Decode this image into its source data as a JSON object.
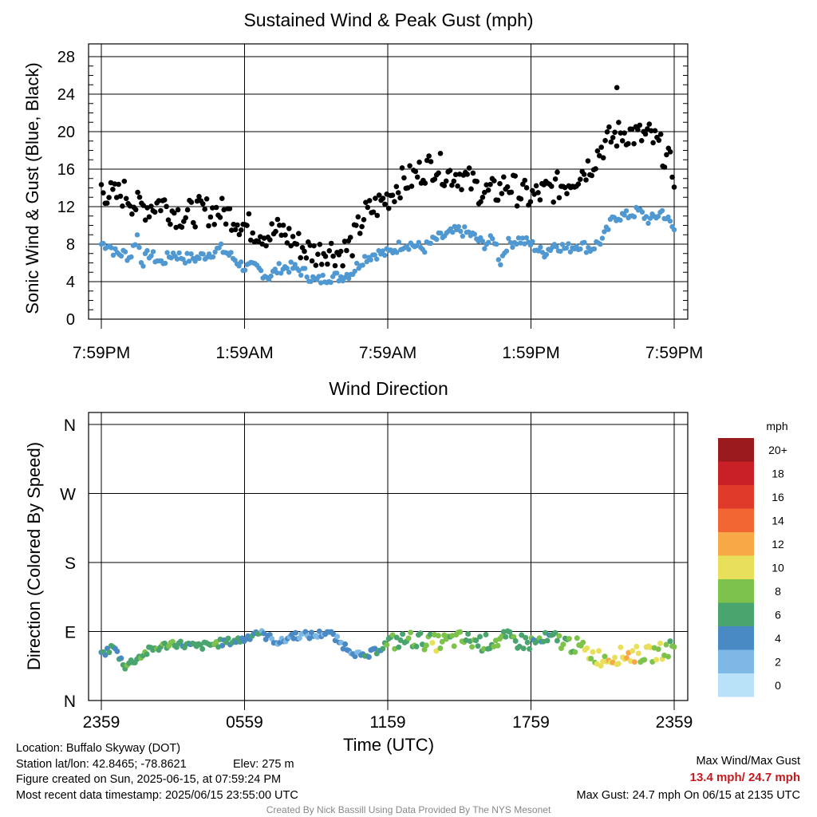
{
  "chart_data": [
    {
      "type": "scatter",
      "title": "Sustained Wind & Peak Gust (mph)",
      "ylabel": "Sonic Wind & Gust (Blue, Black)",
      "xlabel": "",
      "ylim": [
        0,
        28
      ],
      "yticks": [
        "0",
        "4",
        "8",
        "12",
        "16",
        "20",
        "24",
        "28"
      ],
      "xticks": [
        "7:59PM",
        "1:59AM",
        "7:59AM",
        "1:59PM",
        "7:59PM"
      ],
      "x_range_hours": [
        0,
        24
      ],
      "grid": true,
      "series": [],
      "colors": {
        "sustained": "#4f98d2",
        "gust": "#000000"
      },
      "sustained_profile": [
        [
          0,
          8.0
        ],
        [
          0.3,
          8.0
        ],
        [
          0.6,
          7.0
        ],
        [
          1.0,
          7.0
        ],
        [
          1.2,
          6.5
        ],
        [
          1.5,
          9.0
        ],
        [
          1.7,
          6.0
        ],
        [
          2.0,
          7.0
        ],
        [
          2.5,
          6.0
        ],
        [
          3.0,
          7.0
        ],
        [
          3.5,
          6.5
        ],
        [
          4.0,
          6.5
        ],
        [
          4.5,
          7.0
        ],
        [
          5.0,
          7.5
        ],
        [
          5.3,
          7.0
        ],
        [
          6.0,
          5.5
        ],
        [
          6.5,
          5.5
        ],
        [
          7.0,
          4.5
        ],
        [
          7.5,
          5.5
        ],
        [
          8.0,
          5.5
        ],
        [
          8.5,
          5.0
        ],
        [
          9.0,
          4.0
        ],
        [
          9.5,
          4.5
        ],
        [
          10.0,
          4.5
        ],
        [
          10.5,
          5.0
        ],
        [
          11.0,
          6.5
        ],
        [
          11.5,
          7.0
        ],
        [
          12.0,
          7.0
        ],
        [
          12.3,
          7.5
        ],
        [
          12.6,
          8.0
        ],
        [
          13.0,
          8.0
        ],
        [
          13.5,
          7.5
        ],
        [
          14.0,
          8.5
        ],
        [
          14.5,
          9.0
        ],
        [
          15.0,
          9.5
        ],
        [
          15.5,
          9.0
        ],
        [
          16.0,
          8.0
        ],
        [
          16.5,
          8.5
        ],
        [
          16.7,
          6.0
        ],
        [
          17.0,
          8.0
        ],
        [
          17.5,
          8.5
        ],
        [
          18.0,
          8.0
        ],
        [
          18.5,
          7.0
        ],
        [
          19.0,
          8.0
        ],
        [
          19.5,
          7.5
        ],
        [
          20.0,
          8.0
        ],
        [
          20.5,
          7.5
        ],
        [
          21.0,
          8.5
        ],
        [
          21.5,
          11.0
        ],
        [
          22.0,
          11.0
        ],
        [
          22.5,
          11.5
        ],
        [
          23.0,
          10.5
        ],
        [
          23.5,
          11.5
        ],
        [
          24.0,
          9.5
        ]
      ],
      "gust_profile": [
        [
          0,
          14.0
        ],
        [
          0.5,
          13.0
        ],
        [
          1.0,
          13.5
        ],
        [
          1.5,
          12.0
        ],
        [
          2.0,
          12.0
        ],
        [
          2.5,
          12.5
        ],
        [
          3.0,
          11.5
        ],
        [
          3.5,
          11.0
        ],
        [
          4.0,
          11.5
        ],
        [
          4.5,
          11.5
        ],
        [
          5.0,
          11.5
        ],
        [
          5.5,
          11.0
        ],
        [
          6.0,
          10.0
        ],
        [
          6.5,
          9.5
        ],
        [
          7.0,
          9.0
        ],
        [
          7.5,
          9.5
        ],
        [
          8.0,
          8.5
        ],
        [
          8.5,
          7.5
        ],
        [
          9.0,
          7.0
        ],
        [
          9.5,
          7.5
        ],
        [
          10.0,
          7.0
        ],
        [
          10.5,
          8.0
        ],
        [
          11.0,
          11.0
        ],
        [
          11.5,
          12.0
        ],
        [
          12.0,
          13.0
        ],
        [
          12.5,
          14.5
        ],
        [
          13.0,
          15.0
        ],
        [
          13.5,
          16.0
        ],
        [
          14.0,
          16.5
        ],
        [
          14.5,
          15.5
        ],
        [
          15.0,
          15.5
        ],
        [
          15.5,
          14.5
        ],
        [
          16.0,
          13.5
        ],
        [
          16.5,
          13.5
        ],
        [
          17.0,
          14.5
        ],
        [
          17.5,
          13.5
        ],
        [
          18.0,
          13.0
        ],
        [
          18.5,
          13.5
        ],
        [
          19.0,
          14.0
        ],
        [
          19.5,
          14.5
        ],
        [
          20.0,
          15.5
        ],
        [
          20.5,
          16.5
        ],
        [
          21.0,
          18.5
        ],
        [
          21.5,
          19.5
        ],
        [
          22.0,
          20.0
        ],
        [
          22.5,
          19.5
        ],
        [
          23.0,
          19.5
        ],
        [
          23.5,
          18.0
        ],
        [
          24.0,
          15.5
        ]
      ],
      "peak_gust": {
        "value": 24.7,
        "x_hours": 21.6
      }
    },
    {
      "type": "scatter",
      "title": "Wind Direction",
      "ylabel": "Direction (Colored By Speed)",
      "xlabel": "Time (UTC)",
      "yticks": [
        "N",
        "E",
        "S",
        "W",
        "N"
      ],
      "ylim": [
        0,
        360
      ],
      "xticks": [
        "2359",
        "0559",
        "1159",
        "1759",
        "2359"
      ],
      "x_range_hours": [
        0,
        24
      ],
      "grid": true,
      "direction_profile": [
        [
          0,
          60
        ],
        [
          0.5,
          70
        ],
        [
          1.0,
          45
        ],
        [
          1.5,
          55
        ],
        [
          2.0,
          65
        ],
        [
          3.0,
          75
        ],
        [
          4.0,
          70
        ],
        [
          5.0,
          75
        ],
        [
          6.0,
          80
        ],
        [
          6.5,
          90
        ],
        [
          7.5,
          75
        ],
        [
          8.0,
          85
        ],
        [
          9.0,
          85
        ],
        [
          9.5,
          90
        ],
        [
          10.0,
          75
        ],
        [
          11.0,
          55
        ],
        [
          11.5,
          65
        ],
        [
          12.0,
          75
        ],
        [
          13.0,
          80
        ],
        [
          14.0,
          75
        ],
        [
          15.0,
          80
        ],
        [
          16.0,
          75
        ],
        [
          17.0,
          80
        ],
        [
          18.0,
          75
        ],
        [
          19.0,
          80
        ],
        [
          20.0,
          70
        ],
        [
          20.5,
          60
        ],
        [
          21.0,
          55
        ],
        [
          22.0,
          60
        ],
        [
          23.0,
          60
        ],
        [
          24.0,
          70
        ]
      ],
      "speed_profile": [
        [
          0,
          6
        ],
        [
          1.5,
          8
        ],
        [
          3.0,
          7
        ],
        [
          5.0,
          7
        ],
        [
          6.5,
          5
        ],
        [
          8.0,
          4
        ],
        [
          9.5,
          4
        ],
        [
          11.0,
          5
        ],
        [
          12.0,
          7
        ],
        [
          13.0,
          8
        ],
        [
          14.0,
          9
        ],
        [
          15.0,
          9
        ],
        [
          16.0,
          8
        ],
        [
          17.0,
          8
        ],
        [
          18.0,
          7
        ],
        [
          19.0,
          7
        ],
        [
          20.0,
          9
        ],
        [
          21.0,
          11
        ],
        [
          22.0,
          12
        ],
        [
          23.0,
          10
        ],
        [
          24.0,
          9
        ]
      ],
      "colorbar": {
        "title": "mph",
        "labels": [
          "20+",
          "18",
          "16",
          "14",
          "12",
          "10",
          "8",
          "6",
          "4",
          "2",
          "0"
        ],
        "colors": [
          "#9a1a1d",
          "#c91f26",
          "#df3a2a",
          "#f16632",
          "#f7a847",
          "#e8e05a",
          "#7dc24a",
          "#4aa46e",
          "#4989c4",
          "#7db8e6",
          "#b9e1f7"
        ]
      }
    }
  ],
  "footer": {
    "location": "Location: Buffalo Skyway (DOT)",
    "latlon": "Station lat/lon: 42.8465; -78.8621",
    "elev": "Elev: 275 m",
    "created": "Figure created on Sun, 2025-06-15, at 07:59:24 PM",
    "recent": "Most recent data timestamp: 2025/06/15 23:55:00 UTC",
    "max_title": "Max Wind/Max Gust",
    "max_values": "13.4 mph/ 24.7 mph",
    "max_gust": "Max Gust: 24.7 mph On 06/15 at 2135 UTC",
    "credit": "Created By Nick Bassill Using Data Provided By The NYS Mesonet"
  }
}
